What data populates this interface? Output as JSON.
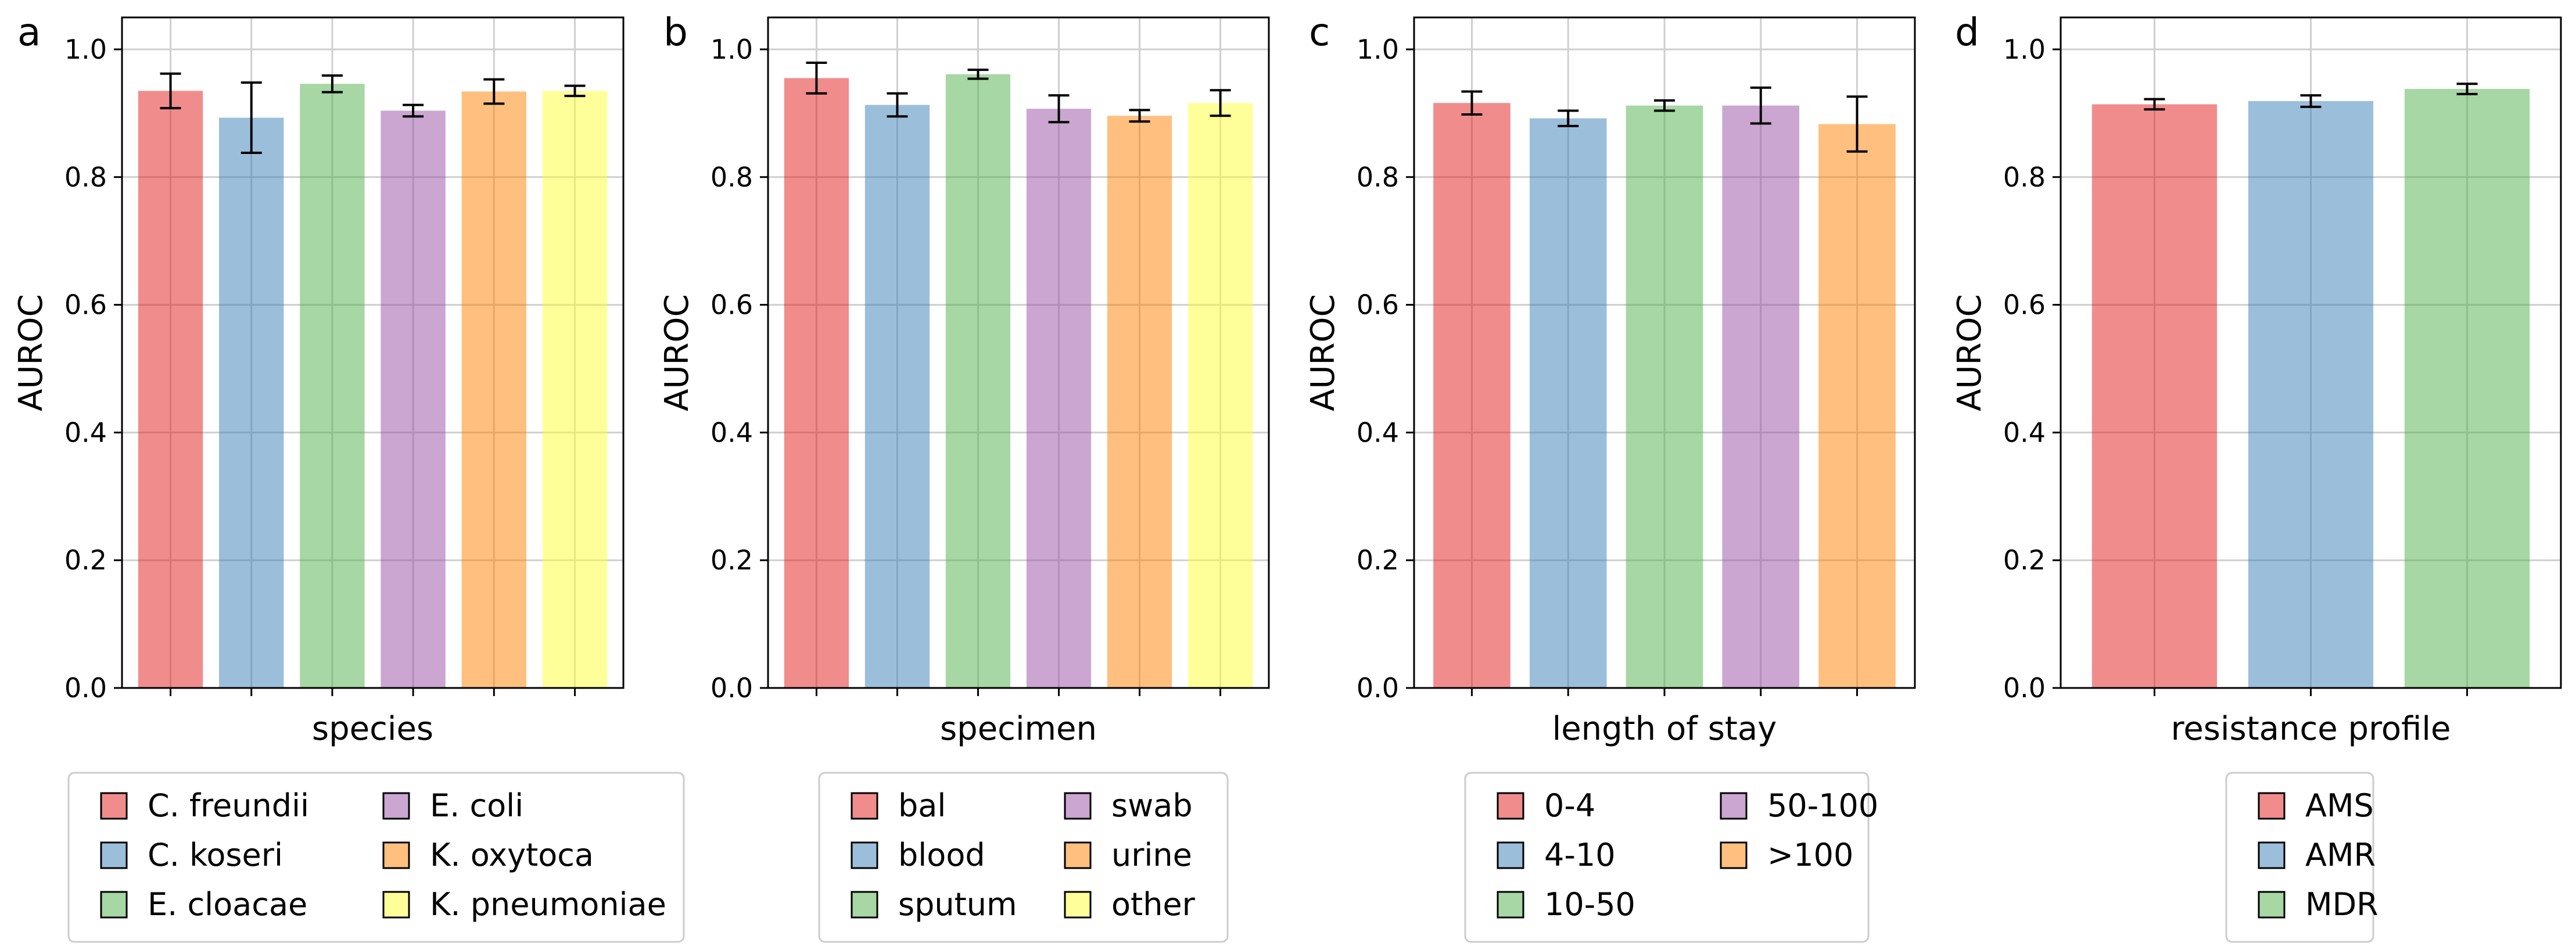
{
  "chart_data": [
    {
      "panel_label": "a",
      "type": "bar",
      "xlabel": "species",
      "ylabel": "AUROC",
      "ylim": [
        0,
        1.05
      ],
      "yticks": [
        "0.0",
        "0.2",
        "0.4",
        "0.6",
        "0.8",
        "1.0"
      ],
      "grid": true,
      "legend": {
        "placement": "below",
        "columns": 2
      },
      "series": [
        {
          "name": "C. freundii",
          "value": 0.935,
          "err": 0.027,
          "color": "#E41A1C"
        },
        {
          "name": "C. koseri",
          "value": 0.893,
          "err": 0.055,
          "color": "#377EB8"
        },
        {
          "name": "E. cloacae",
          "value": 0.946,
          "err": 0.013,
          "color": "#4DAF4A"
        },
        {
          "name": "E. coli",
          "value": 0.904,
          "err": 0.009,
          "color": "#984EA3"
        },
        {
          "name": "K. oxytoca",
          "value": 0.934,
          "err": 0.019,
          "color": "#FF7F00"
        },
        {
          "name": "K. pneumoniae",
          "value": 0.935,
          "err": 0.008,
          "color": "#FFFF33"
        }
      ]
    },
    {
      "panel_label": "b",
      "type": "bar",
      "xlabel": "specimen",
      "ylabel": "AUROC",
      "ylim": [
        0,
        1.05
      ],
      "yticks": [
        "0.0",
        "0.2",
        "0.4",
        "0.6",
        "0.8",
        "1.0"
      ],
      "grid": true,
      "legend": {
        "placement": "below",
        "columns": 2
      },
      "series": [
        {
          "name": "bal",
          "value": 0.955,
          "err": 0.024,
          "color": "#E41A1C"
        },
        {
          "name": "blood",
          "value": 0.913,
          "err": 0.018,
          "color": "#377EB8"
        },
        {
          "name": "sputum",
          "value": 0.961,
          "err": 0.007,
          "color": "#4DAF4A"
        },
        {
          "name": "swab",
          "value": 0.907,
          "err": 0.021,
          "color": "#984EA3"
        },
        {
          "name": "urine",
          "value": 0.896,
          "err": 0.009,
          "color": "#FF7F00"
        },
        {
          "name": "other",
          "value": 0.916,
          "err": 0.02,
          "color": "#FFFF33"
        }
      ]
    },
    {
      "panel_label": "c",
      "type": "bar",
      "xlabel": "length of stay",
      "ylabel": "AUROC",
      "ylim": [
        0,
        1.05
      ],
      "yticks": [
        "0.0",
        "0.2",
        "0.4",
        "0.6",
        "0.8",
        "1.0"
      ],
      "grid": true,
      "legend": {
        "placement": "below",
        "columns": 2
      },
      "series": [
        {
          "name": "0-4",
          "value": 0.916,
          "err": 0.018,
          "color": "#E41A1C"
        },
        {
          "name": "4-10",
          "value": 0.892,
          "err": 0.012,
          "color": "#377EB8"
        },
        {
          "name": "10-50",
          "value": 0.912,
          "err": 0.008,
          "color": "#4DAF4A"
        },
        {
          "name": "50-100",
          "value": 0.912,
          "err": 0.028,
          "color": "#984EA3"
        },
        {
          "name": ">100",
          "value": 0.883,
          "err": 0.043,
          "color": "#FF7F00"
        }
      ]
    },
    {
      "panel_label": "d",
      "type": "bar",
      "xlabel": "resistance profile",
      "ylabel": "AUROC",
      "ylim": [
        0,
        1.05
      ],
      "yticks": [
        "0.0",
        "0.2",
        "0.4",
        "0.6",
        "0.8",
        "1.0"
      ],
      "grid": true,
      "legend": {
        "placement": "below",
        "columns": 1
      },
      "series": [
        {
          "name": "AMS",
          "value": 0.914,
          "err": 0.008,
          "color": "#E41A1C"
        },
        {
          "name": "AMR",
          "value": 0.919,
          "err": 0.009,
          "color": "#377EB8"
        },
        {
          "name": "MDR",
          "value": 0.938,
          "err": 0.008,
          "color": "#4DAF4A"
        }
      ]
    }
  ]
}
